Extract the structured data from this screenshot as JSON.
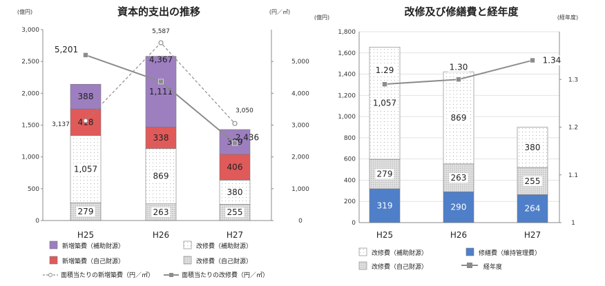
{
  "chart_data": [
    {
      "type": "bar",
      "title": "資本的支出の推移",
      "y_unit_left": "(億円)",
      "y_unit_right": "(円／㎡)",
      "categories": [
        "H25",
        "H26",
        "H27"
      ],
      "ylim": [
        0,
        3000
      ],
      "yticks": [
        "0",
        "500",
        "1,000",
        "1,500",
        "2,000",
        "2,500",
        "3,000"
      ],
      "y2lim": [
        0,
        6000
      ],
      "y2ticks": [
        "0",
        "1,000",
        "2,000",
        "3,000",
        "4,000",
        "5,000"
      ],
      "grid": false,
      "legend_position": "bottom",
      "series": [
        {
          "name": "改修費（自己財源）",
          "values": [
            279,
            263,
            255
          ],
          "labels": [
            "279",
            "263",
            "255"
          ],
          "color": "#e2e2e2",
          "pattern": "dots-dense"
        },
        {
          "name": "改修費（補助財源）",
          "values": [
            1057,
            869,
            380
          ],
          "labels": [
            "1,057",
            "869",
            "380"
          ],
          "color": "#ffffff",
          "pattern": "dots-sparse"
        },
        {
          "name": "新増築費（自己財源）",
          "values": [
            418,
            338,
            406
          ],
          "labels": [
            "418",
            "338",
            "406"
          ],
          "color": "#e05a5a"
        },
        {
          "name": "新増築費（補助財源）",
          "values": [
            388,
            1111,
            389
          ],
          "labels": [
            "388",
            "1,111",
            "389"
          ],
          "color": "#9d7fc0"
        }
      ],
      "lines": [
        {
          "name": "面積当たりの新増築費（円／㎡）",
          "values": [
            3137,
            5587,
            3050
          ],
          "labels": [
            "3,137",
            "5,587",
            "3,050"
          ],
          "color": "#8c8c8c",
          "dashed": true
        },
        {
          "name": "面積当たりの改修費（円／㎡）",
          "values": [
            5201,
            4367,
            2436
          ],
          "labels": [
            "5,201",
            "4,367",
            "2,436"
          ],
          "color": "#8c8c8c",
          "dashed": false
        }
      ]
    },
    {
      "type": "bar",
      "title": "改修及び修繕費と経年度",
      "y_unit_left": "(億円)",
      "y_unit_right": "(経年度)",
      "categories": [
        "H25",
        "H26",
        "H27"
      ],
      "ylim": [
        0,
        1800
      ],
      "yticks": [
        "0",
        "200",
        "400",
        "600",
        "800",
        "1,000",
        "1,200",
        "1,400",
        "1,600",
        "1,800"
      ],
      "y2lim": [
        1.0,
        1.4
      ],
      "y2ticks": [
        "1",
        "1.1",
        "1.2",
        "1.3"
      ],
      "grid": true,
      "legend_position": "bottom",
      "series": [
        {
          "name": "修繕費（維持管理費）",
          "values": [
            319,
            290,
            264
          ],
          "labels": [
            "319",
            "290",
            "264"
          ],
          "color": "#4f7fc8"
        },
        {
          "name": "改修費（自己財源）",
          "values": [
            279,
            263,
            255
          ],
          "labels": [
            "279",
            "263",
            "255"
          ],
          "color": "#e2e2e2",
          "pattern": "dots-dense"
        },
        {
          "name": "改修費（補助財源）",
          "values": [
            1057,
            869,
            380
          ],
          "labels": [
            "1,057",
            "869",
            "380"
          ],
          "color": "#ffffff",
          "pattern": "dots-sparse"
        }
      ],
      "lines": [
        {
          "name": "経年度",
          "values": [
            1.29,
            1.3,
            1.34
          ],
          "labels": [
            "1.29",
            "1.30",
            "1.34"
          ],
          "color": "#8c8c8c",
          "dashed": false
        }
      ]
    }
  ]
}
